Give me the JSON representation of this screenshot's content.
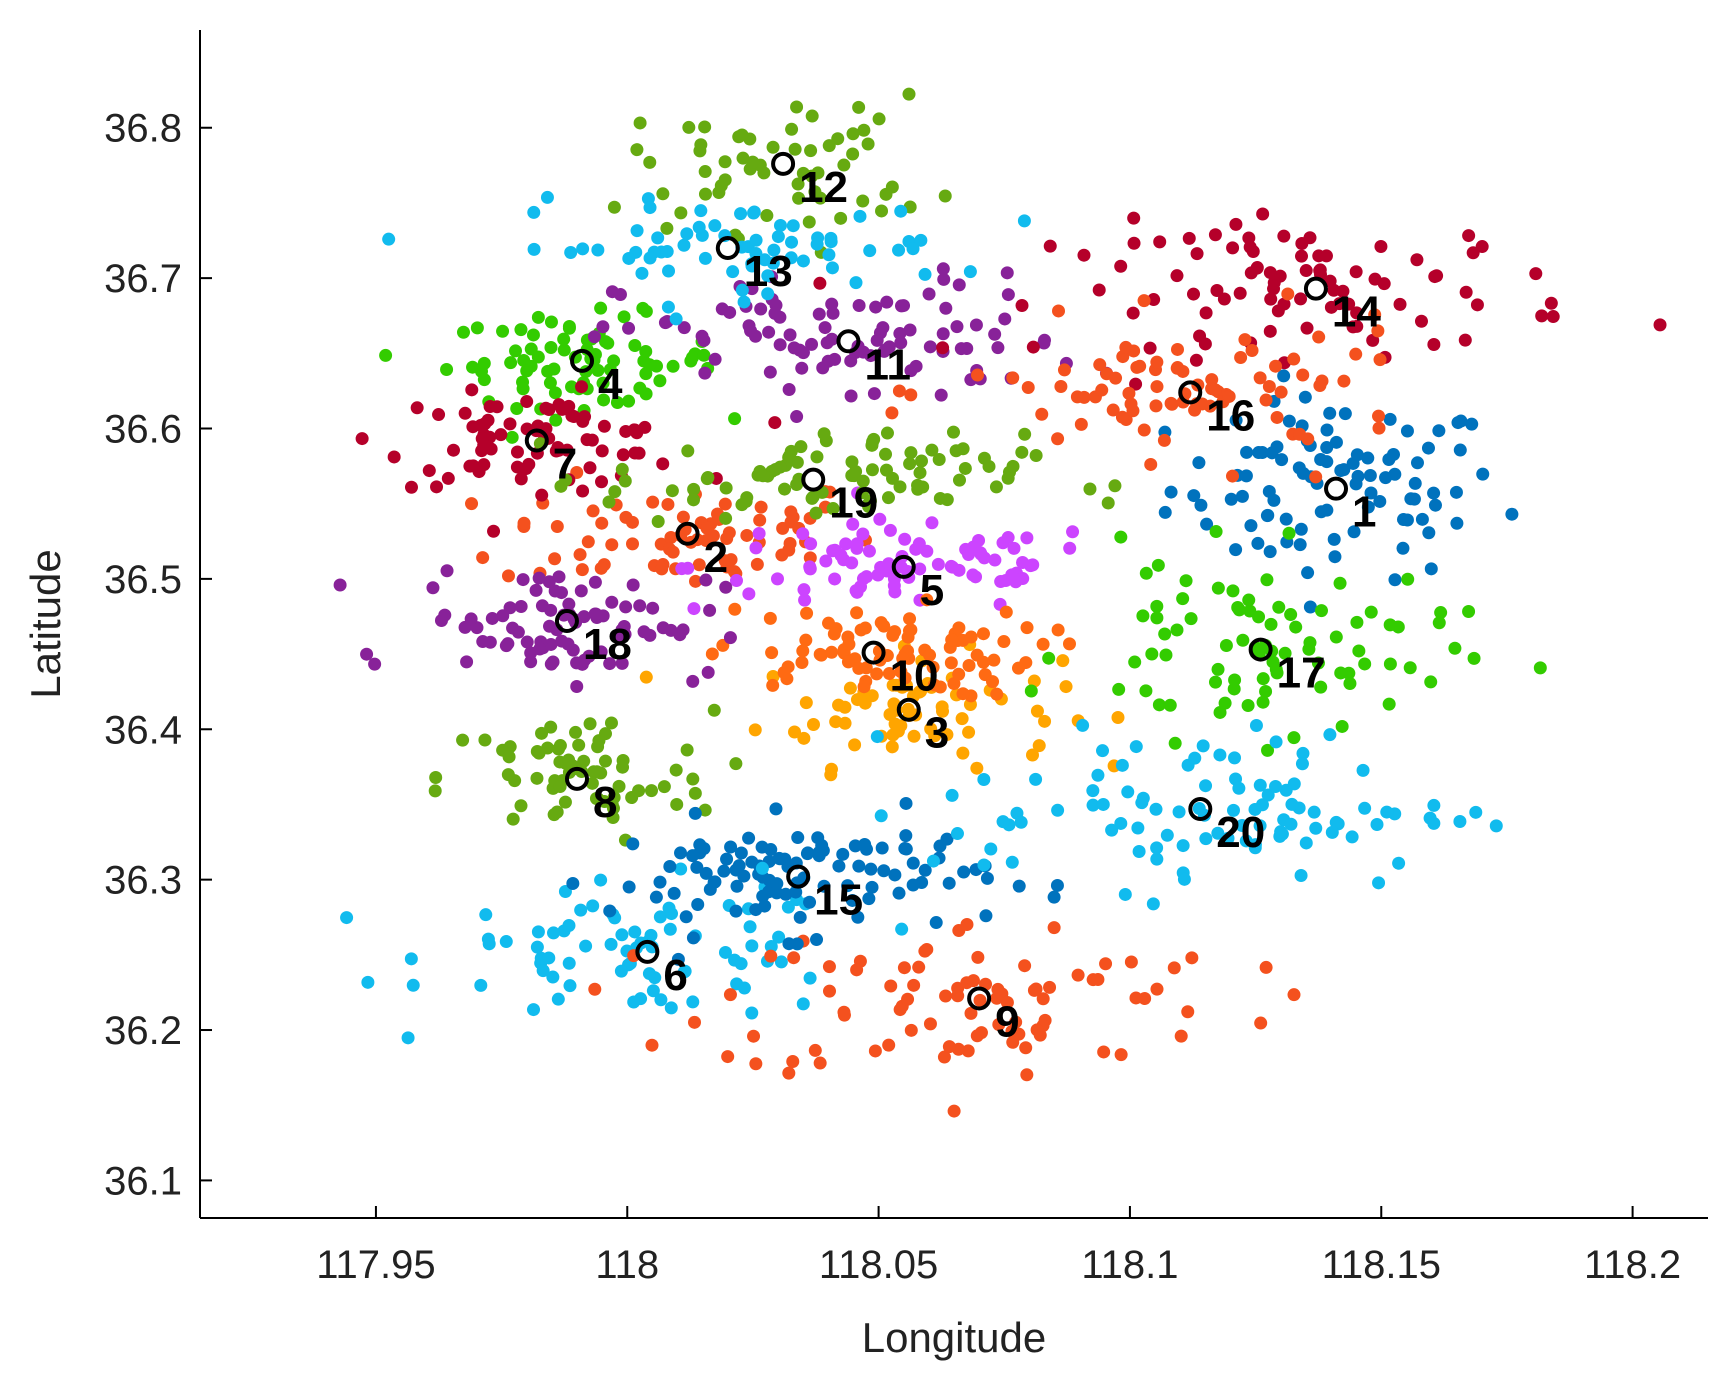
{
  "chart_data": {
    "type": "scatter",
    "title": "",
    "xlabel": "Longitude",
    "ylabel": "Latitude",
    "xlim": [
      117.915,
      118.215
    ],
    "ylim": [
      36.075,
      36.865
    ],
    "xticks": [
      117.95,
      118,
      118.05,
      118.1,
      118.15,
      118.2
    ],
    "xtick_labels": [
      "117.95",
      "118",
      "118.05",
      "118.1",
      "118.15",
      "118.2"
    ],
    "yticks": [
      36.1,
      36.2,
      36.3,
      36.4,
      36.5,
      36.6,
      36.7,
      36.8
    ],
    "ytick_labels": [
      "36.1",
      "36.2",
      "36.3",
      "36.4",
      "36.5",
      "36.6",
      "36.7",
      "36.8"
    ],
    "grid": false,
    "legend": "none",
    "clusters": [
      {
        "id": "1",
        "label": "1",
        "center": [
          118.141,
          36.56
        ],
        "color": "#0072BD",
        "spread": [
          0.022,
          0.04
        ],
        "count": 95
      },
      {
        "id": "2",
        "label": "2",
        "center": [
          118.012,
          36.53
        ],
        "color": "#F4511E",
        "spread": [
          0.025,
          0.025
        ],
        "count": 75
      },
      {
        "id": "3",
        "label": "3",
        "center": [
          118.056,
          36.413
        ],
        "color": "#FFA500",
        "spread": [
          0.02,
          0.025
        ],
        "count": 70
      },
      {
        "id": "4",
        "label": "4",
        "center": [
          117.991,
          36.645
        ],
        "color": "#33CC00",
        "spread": [
          0.018,
          0.02
        ],
        "count": 80
      },
      {
        "id": "5",
        "label": "5",
        "center": [
          118.055,
          36.508
        ],
        "color": "#CC44FF",
        "spread": [
          0.028,
          0.02
        ],
        "count": 85
      },
      {
        "id": "6",
        "label": "6",
        "center": [
          118.004,
          36.252
        ],
        "color": "#11BBEE",
        "spread": [
          0.028,
          0.03
        ],
        "count": 80
      },
      {
        "id": "7",
        "label": "7",
        "center": [
          117.982,
          36.592
        ],
        "color": "#B5002A",
        "spread": [
          0.02,
          0.02
        ],
        "count": 80
      },
      {
        "id": "8",
        "label": "8",
        "center": [
          117.99,
          36.367
        ],
        "color": "#66AA11",
        "spread": [
          0.018,
          0.03
        ],
        "count": 70
      },
      {
        "id": "9",
        "label": "9",
        "center": [
          118.07,
          36.221
        ],
        "color": "#F4511E",
        "spread": [
          0.035,
          0.035
        ],
        "count": 90
      },
      {
        "id": "10",
        "label": "10",
        "center": [
          118.049,
          36.451
        ],
        "color": "#FF6A13",
        "spread": [
          0.022,
          0.02
        ],
        "count": 85
      },
      {
        "id": "11",
        "label": "11",
        "center": [
          118.044,
          36.658
        ],
        "color": "#882299",
        "spread": [
          0.03,
          0.03
        ],
        "count": 95
      },
      {
        "id": "12",
        "label": "12",
        "center": [
          118.031,
          36.776
        ],
        "color": "#66AA11",
        "spread": [
          0.02,
          0.03
        ],
        "count": 60
      },
      {
        "id": "13",
        "label": "13",
        "center": [
          118.02,
          36.72
        ],
        "color": "#11BBEE",
        "spread": [
          0.03,
          0.02
        ],
        "count": 70
      },
      {
        "id": "14",
        "label": "14",
        "center": [
          118.137,
          36.693
        ],
        "color": "#B5002A",
        "spread": [
          0.035,
          0.03
        ],
        "count": 90
      },
      {
        "id": "15",
        "label": "15",
        "center": [
          118.034,
          36.302
        ],
        "color": "#0072BD",
        "spread": [
          0.025,
          0.025
        ],
        "count": 110
      },
      {
        "id": "16",
        "label": "16",
        "center": [
          118.112,
          36.624
        ],
        "color": "#F4511E",
        "spread": [
          0.03,
          0.03
        ],
        "count": 85
      },
      {
        "id": "17",
        "label": "17",
        "center": [
          118.126,
          36.453
        ],
        "color": "#33CC00",
        "spread": [
          0.025,
          0.04
        ],
        "count": 85
      },
      {
        "id": "18",
        "label": "18",
        "center": [
          117.988,
          36.472
        ],
        "color": "#882299",
        "spread": [
          0.02,
          0.025
        ],
        "count": 85
      },
      {
        "id": "19",
        "label": "19",
        "center": [
          118.037,
          36.566
        ],
        "color": "#66AA11",
        "spread": [
          0.028,
          0.02
        ],
        "count": 90
      },
      {
        "id": "20",
        "label": "20",
        "center": [
          118.114,
          36.347
        ],
        "color": "#11BBEE",
        "spread": [
          0.035,
          0.035
        ],
        "count": 100
      }
    ]
  }
}
